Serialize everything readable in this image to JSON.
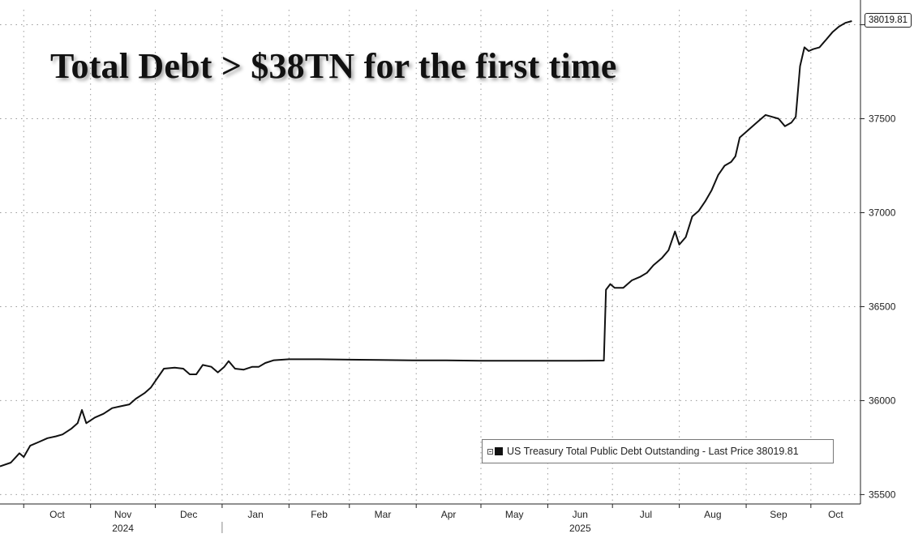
{
  "headline": "Total Debt > $38TN for the first time",
  "legend": {
    "label": "US Treasury Total Public Debt Outstanding - Last Price 38019.81"
  },
  "last_price_label": "38019.81",
  "colors": {
    "series_line": "#111111",
    "grid": "#9a9a9a",
    "axis": "#222222",
    "background": "#ffffff"
  },
  "chart_data": {
    "type": "line",
    "title": "Total Debt > $38TN for the first time",
    "xlabel": "",
    "ylabel": "",
    "grid": true,
    "legend_position": "bottom-right",
    "ylim": [
      35450,
      38080
    ],
    "y_ticks": [
      35500,
      36000,
      36500,
      37000,
      37500,
      38000
    ],
    "y_tick_labels": [
      "35500",
      "36000",
      "36500",
      "37000",
      "37500",
      ""
    ],
    "x_range": [
      "2024-09-20",
      "2025-10-24"
    ],
    "month_ticks": [
      {
        "date": "2024-10-01",
        "label": "Oct"
      },
      {
        "date": "2024-11-01",
        "label": "Nov"
      },
      {
        "date": "2024-12-01",
        "label": "Dec"
      },
      {
        "date": "2025-01-01",
        "label": "Jan"
      },
      {
        "date": "2025-02-01",
        "label": "Feb"
      },
      {
        "date": "2025-03-01",
        "label": "Mar"
      },
      {
        "date": "2025-04-01",
        "label": "Apr"
      },
      {
        "date": "2025-05-01",
        "label": "May"
      },
      {
        "date": "2025-06-01",
        "label": "Jun"
      },
      {
        "date": "2025-07-01",
        "label": "Jul"
      },
      {
        "date": "2025-08-01",
        "label": "Aug"
      },
      {
        "date": "2025-09-01",
        "label": "Sep"
      },
      {
        "date": "2025-10-01",
        "label": "Oct"
      }
    ],
    "year_labels": [
      {
        "date": "2024-11-01",
        "label": "2024"
      },
      {
        "date": "2025-06-01",
        "label": "2025"
      }
    ],
    "series": [
      {
        "name": "US Treasury Total Public Debt Outstanding",
        "last_price": 38019.81,
        "points": [
          [
            "2024-09-20",
            35650
          ],
          [
            "2024-09-25",
            35670
          ],
          [
            "2024-09-29",
            35720
          ],
          [
            "2024-10-01",
            35700
          ],
          [
            "2024-10-04",
            35760
          ],
          [
            "2024-10-08",
            35780
          ],
          [
            "2024-10-12",
            35800
          ],
          [
            "2024-10-16",
            35810
          ],
          [
            "2024-10-19",
            35820
          ],
          [
            "2024-10-23",
            35850
          ],
          [
            "2024-10-26",
            35880
          ],
          [
            "2024-10-28",
            35950
          ],
          [
            "2024-10-30",
            35880
          ],
          [
            "2024-11-03",
            35910
          ],
          [
            "2024-11-07",
            35930
          ],
          [
            "2024-11-11",
            35960
          ],
          [
            "2024-11-15",
            35970
          ],
          [
            "2024-11-19",
            35980
          ],
          [
            "2024-11-22",
            36010
          ],
          [
            "2024-11-26",
            36040
          ],
          [
            "2024-11-29",
            36070
          ],
          [
            "2024-12-02",
            36120
          ],
          [
            "2024-12-05",
            36170
          ],
          [
            "2024-12-10",
            36175
          ],
          [
            "2024-12-14",
            36170
          ],
          [
            "2024-12-17",
            36140
          ],
          [
            "2024-12-20",
            36140
          ],
          [
            "2024-12-23",
            36190
          ],
          [
            "2024-12-27",
            36180
          ],
          [
            "2024-12-30",
            36150
          ],
          [
            "2025-01-02",
            36180
          ],
          [
            "2025-01-04",
            36210
          ],
          [
            "2025-01-07",
            36170
          ],
          [
            "2025-01-11",
            36165
          ],
          [
            "2025-01-15",
            36180
          ],
          [
            "2025-01-18",
            36180
          ],
          [
            "2025-01-21",
            36200
          ],
          [
            "2025-01-25",
            36215
          ],
          [
            "2025-02-01",
            36220
          ],
          [
            "2025-02-15",
            36220
          ],
          [
            "2025-03-01",
            36218
          ],
          [
            "2025-03-15",
            36216
          ],
          [
            "2025-04-01",
            36214
          ],
          [
            "2025-04-15",
            36214
          ],
          [
            "2025-05-01",
            36212
          ],
          [
            "2025-05-15",
            36212
          ],
          [
            "2025-06-01",
            36212
          ],
          [
            "2025-06-15",
            36212
          ],
          [
            "2025-06-27",
            36213
          ],
          [
            "2025-06-28",
            36590
          ],
          [
            "2025-06-30",
            36620
          ],
          [
            "2025-07-02",
            36600
          ],
          [
            "2025-07-06",
            36600
          ],
          [
            "2025-07-10",
            36640
          ],
          [
            "2025-07-14",
            36660
          ],
          [
            "2025-07-17",
            36680
          ],
          [
            "2025-07-20",
            36720
          ],
          [
            "2025-07-24",
            36760
          ],
          [
            "2025-07-27",
            36800
          ],
          [
            "2025-07-30",
            36900
          ],
          [
            "2025-08-01",
            36830
          ],
          [
            "2025-08-04",
            36870
          ],
          [
            "2025-08-07",
            36980
          ],
          [
            "2025-08-10",
            37010
          ],
          [
            "2025-08-13",
            37060
          ],
          [
            "2025-08-16",
            37120
          ],
          [
            "2025-08-19",
            37200
          ],
          [
            "2025-08-22",
            37250
          ],
          [
            "2025-08-25",
            37270
          ],
          [
            "2025-08-27",
            37300
          ],
          [
            "2025-08-29",
            37400
          ],
          [
            "2025-09-01",
            37430
          ],
          [
            "2025-09-04",
            37460
          ],
          [
            "2025-09-07",
            37490
          ],
          [
            "2025-09-10",
            37520
          ],
          [
            "2025-09-13",
            37510
          ],
          [
            "2025-09-16",
            37500
          ],
          [
            "2025-09-19",
            37460
          ],
          [
            "2025-09-22",
            37480
          ],
          [
            "2025-09-24",
            37510
          ],
          [
            "2025-09-26",
            37780
          ],
          [
            "2025-09-28",
            37880
          ],
          [
            "2025-09-30",
            37860
          ],
          [
            "2025-10-02",
            37870
          ],
          [
            "2025-10-05",
            37880
          ],
          [
            "2025-10-08",
            37920
          ],
          [
            "2025-10-11",
            37960
          ],
          [
            "2025-10-14",
            37990
          ],
          [
            "2025-10-17",
            38010
          ],
          [
            "2025-10-20",
            38019.81
          ]
        ]
      }
    ]
  }
}
